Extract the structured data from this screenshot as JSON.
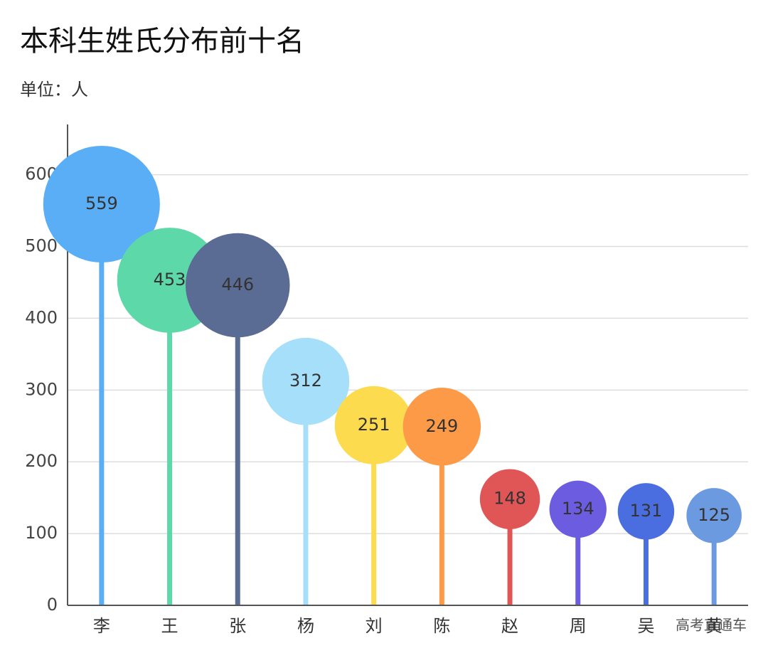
{
  "chart_data": {
    "type": "lollipop",
    "title": "本科生姓氏分布前十名",
    "subtitle": "单位：人",
    "categories": [
      "李",
      "王",
      "张",
      "杨",
      "刘",
      "陈",
      "赵",
      "周",
      "吴",
      "黄"
    ],
    "values": [
      559,
      453,
      446,
      312,
      251,
      249,
      148,
      134,
      131,
      125
    ],
    "colors": [
      "#5aaef5",
      "#5dd8a8",
      "#5a6b94",
      "#a6dff9",
      "#fddb4f",
      "#fd9a48",
      "#e05656",
      "#6c5ce0",
      "#4a6ee0",
      "#6b9ae0"
    ],
    "ylim": [
      0,
      670
    ],
    "yticks": [
      0,
      100,
      200,
      300,
      400,
      500,
      600
    ],
    "grid": true,
    "watermark": "高考直通车"
  }
}
